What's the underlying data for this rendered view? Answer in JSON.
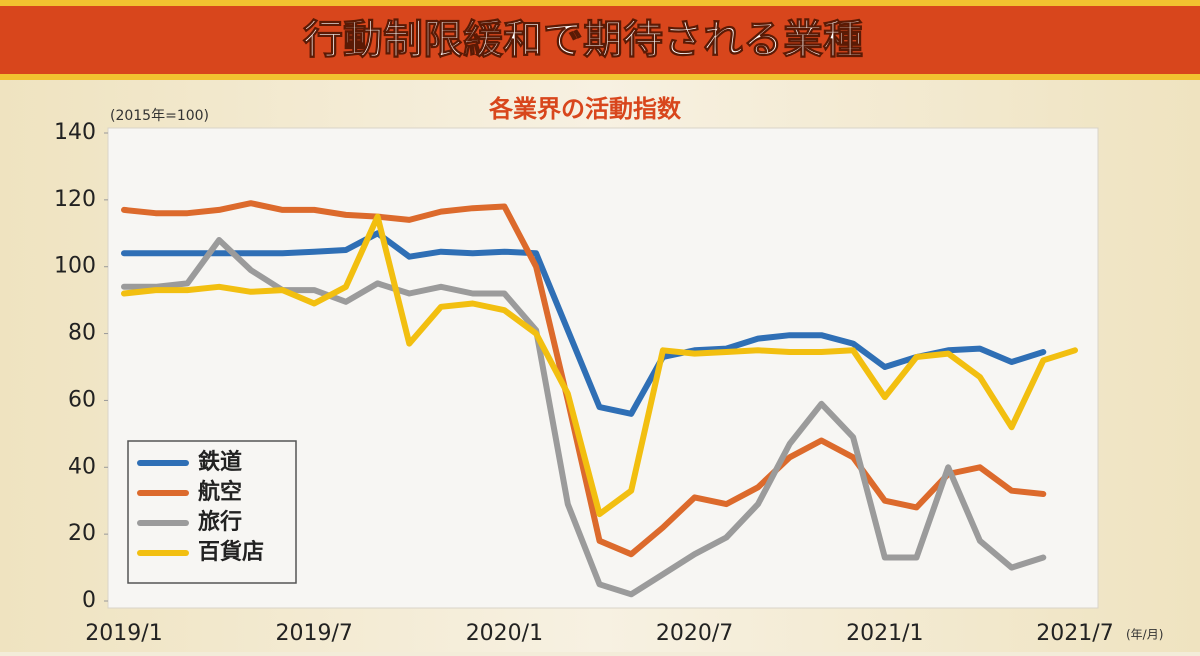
{
  "chart_data": {
    "type": "line",
    "title": "行動制限緩和で期待される業種",
    "subtitle": "各業界の活動指数",
    "y_unit_label": "(2015年=100)",
    "x_unit_label": "(年/月)",
    "categories": [
      "2019/1",
      null,
      null,
      null,
      null,
      null,
      "2019/7",
      null,
      null,
      null,
      null,
      null,
      "2020/1",
      null,
      null,
      null,
      null,
      null,
      "2020/7",
      null,
      null,
      null,
      null,
      null,
      "2021/1",
      null,
      null,
      null,
      null,
      null,
      "2021/7"
    ],
    "series": [
      {
        "name": "鉄道",
        "color": "#2f6fb5",
        "values": [
          104,
          104,
          104,
          104,
          104,
          104,
          104.5,
          105,
          110,
          103,
          104.5,
          104,
          104.5,
          104,
          81,
          58,
          56,
          73,
          75,
          75.5,
          78.5,
          79.5,
          79.5,
          77,
          70,
          73,
          75,
          75.5,
          71.5,
          74.5,
          null
        ]
      },
      {
        "name": "航空",
        "color": "#dc6a2c",
        "values": [
          117,
          116,
          116,
          117,
          119,
          117,
          117,
          115.5,
          115,
          114,
          116.5,
          117.5,
          118,
          100,
          60,
          18,
          14,
          22,
          31,
          29,
          34,
          43,
          48,
          43,
          30,
          28,
          38,
          40,
          33,
          32,
          null
        ]
      },
      {
        "name": "旅行",
        "color": "#9b9b9b",
        "values": [
          94,
          94,
          95,
          108,
          99,
          93,
          93,
          89.5,
          95,
          92,
          94,
          92,
          92,
          81,
          29,
          5,
          2,
          8,
          14,
          19,
          29,
          47,
          59,
          49,
          13,
          13,
          40,
          18,
          10,
          13,
          null
        ]
      },
      {
        "name": "百貨店",
        "color": "#f2bf10",
        "values": [
          92,
          93,
          93,
          94,
          92.5,
          93,
          89,
          94,
          115,
          77,
          88,
          89,
          87,
          80,
          62,
          26,
          33,
          75,
          74,
          74.5,
          75,
          74.5,
          74.5,
          75,
          61,
          73,
          74,
          67,
          52,
          72,
          75
        ]
      }
    ],
    "ylim": [
      0,
      140
    ],
    "yticks": [
      0,
      20,
      40,
      60,
      80,
      100,
      120,
      140
    ],
    "grid": false,
    "legend": "lower-left"
  }
}
